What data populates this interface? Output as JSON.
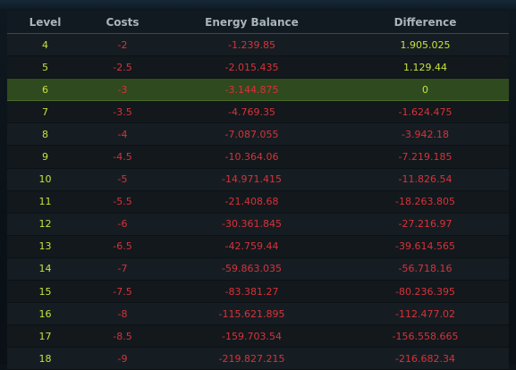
{
  "table": {
    "headers": [
      "Level",
      "Costs",
      "Energy Balance",
      "Difference"
    ],
    "rows": [
      {
        "level": "4",
        "costs": "-2",
        "energy_balance": "-1.239.85",
        "difference": "1.905.025",
        "difference_positive": true,
        "highlight": false
      },
      {
        "level": "5",
        "costs": "-2.5",
        "energy_balance": "-2.015.435",
        "difference": "1.129.44",
        "difference_positive": true,
        "highlight": false
      },
      {
        "level": "6",
        "costs": "-3",
        "energy_balance": "-3.144.875",
        "difference": "0",
        "difference_positive": true,
        "highlight": true
      },
      {
        "level": "7",
        "costs": "-3.5",
        "energy_balance": "-4.769.35",
        "difference": "-1.624.475",
        "difference_positive": false,
        "highlight": false
      },
      {
        "level": "8",
        "costs": "-4",
        "energy_balance": "-7.087.055",
        "difference": "-3.942.18",
        "difference_positive": false,
        "highlight": false
      },
      {
        "level": "9",
        "costs": "-4.5",
        "energy_balance": "-10.364.06",
        "difference": "-7.219.185",
        "difference_positive": false,
        "highlight": false
      },
      {
        "level": "10",
        "costs": "-5",
        "energy_balance": "-14.971.415",
        "difference": "-11.826.54",
        "difference_positive": false,
        "highlight": false
      },
      {
        "level": "11",
        "costs": "-5.5",
        "energy_balance": "-21.408.68",
        "difference": "-18.263.805",
        "difference_positive": false,
        "highlight": false
      },
      {
        "level": "12",
        "costs": "-6",
        "energy_balance": "-30.361.845",
        "difference": "-27.216.97",
        "difference_positive": false,
        "highlight": false
      },
      {
        "level": "13",
        "costs": "-6.5",
        "energy_balance": "-42.759.44",
        "difference": "-39.614.565",
        "difference_positive": false,
        "highlight": false
      },
      {
        "level": "14",
        "costs": "-7",
        "energy_balance": "-59.863.035",
        "difference": "-56.718.16",
        "difference_positive": false,
        "highlight": false
      },
      {
        "level": "15",
        "costs": "-7.5",
        "energy_balance": "-83.381.27",
        "difference": "-80.236.395",
        "difference_positive": false,
        "highlight": false
      },
      {
        "level": "16",
        "costs": "-8",
        "energy_balance": "-115.621.895",
        "difference": "-112.477.02",
        "difference_positive": false,
        "highlight": false
      },
      {
        "level": "17",
        "costs": "-8.5",
        "energy_balance": "-159.703.54",
        "difference": "-156.558.665",
        "difference_positive": false,
        "highlight": false
      },
      {
        "level": "18",
        "costs": "-9",
        "energy_balance": "-219.827.215",
        "difference": "-216.682.34",
        "difference_positive": false,
        "highlight": false
      }
    ]
  },
  "colors": {
    "level_text": "#c6e23c",
    "negative_text": "#d8323a",
    "positive_text": "#c6e23c",
    "highlight_row": "#2f4a1f",
    "header_text": "#a9b4bb"
  }
}
